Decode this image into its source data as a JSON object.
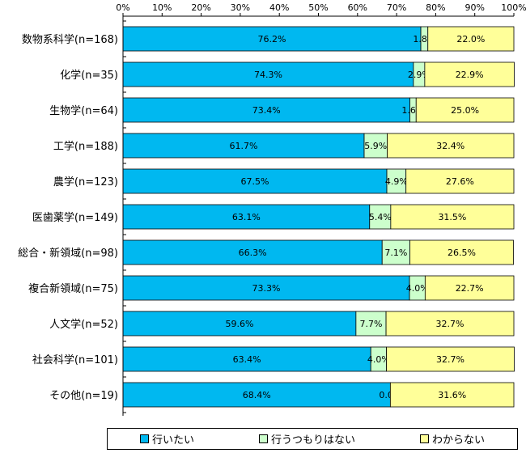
{
  "chart_data": {
    "type": "bar",
    "stacked": true,
    "orientation": "horizontal",
    "x_ticks": [
      "0%",
      "10%",
      "20%",
      "30%",
      "40%",
      "50%",
      "60%",
      "70%",
      "80%",
      "90%",
      "100%"
    ],
    "xlim": [
      0,
      100
    ],
    "categories": [
      "数物系科学(n=168)",
      "化学(n=35)",
      "生物学(n=64)",
      "工学(n=188)",
      "農学(n=123)",
      "医歯薬学(n=149)",
      "総合・新領域(n=98)",
      "複合新領域(n=75)",
      "人文学(n=52)",
      "社会科学(n=101)",
      "その他(n=19)"
    ],
    "series": [
      {
        "name": "行いたい",
        "color": "#00B8F0",
        "values": [
          76.2,
          74.3,
          73.4,
          61.7,
          67.5,
          63.1,
          66.3,
          73.3,
          59.6,
          63.4,
          68.4
        ],
        "labels": [
          "76.2%",
          "74.3%",
          "73.4%",
          "61.7%",
          "67.5%",
          "63.1%",
          "66.3%",
          "73.3%",
          "59.6%",
          "63.4%",
          "68.4%"
        ]
      },
      {
        "name": "行うつもりはない",
        "color": "#CCFFCC",
        "values": [
          1.8,
          2.9,
          1.6,
          5.9,
          4.9,
          5.4,
          7.1,
          4.0,
          7.7,
          4.0,
          0.0
        ],
        "labels": [
          "1.8%",
          "2.9%",
          "1.6%",
          "5.9%",
          "4.9%",
          "5.4%",
          "7.1%",
          "4.0%",
          "7.7%",
          "4.0%",
          "0.0%"
        ]
      },
      {
        "name": "わからない",
        "color": "#FFFF99",
        "values": [
          22.0,
          22.9,
          25.0,
          32.4,
          27.6,
          31.5,
          26.5,
          22.7,
          32.7,
          32.7,
          31.6
        ],
        "labels": [
          "22.0%",
          "22.9%",
          "25.0%",
          "32.4%",
          "27.6%",
          "31.5%",
          "26.5%",
          "22.7%",
          "32.7%",
          "32.7%",
          "31.6%"
        ]
      }
    ],
    "grid": false,
    "legend_position": "bottom"
  }
}
